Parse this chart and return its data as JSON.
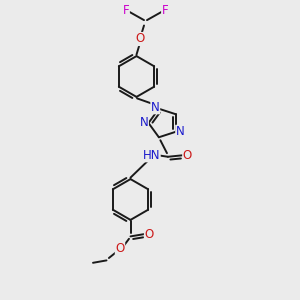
{
  "background_color": "#ebebeb",
  "bond_color": "#1a1a1a",
  "bond_width": 1.4,
  "atom_colors": {
    "N": "#1a1acc",
    "O": "#cc1a1a",
    "F": "#cc00cc"
  },
  "font_size": 8.5,
  "fig_width": 3.0,
  "fig_height": 3.0,
  "xlim": [
    0,
    10
  ],
  "ylim": [
    0,
    10
  ]
}
